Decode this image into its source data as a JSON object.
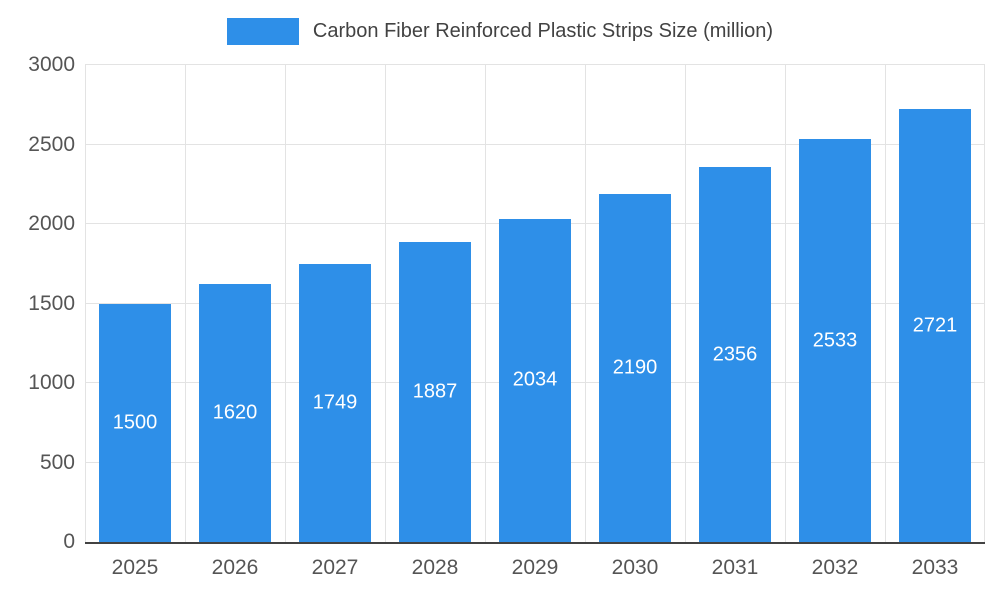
{
  "chart_data": {
    "type": "bar",
    "title": "Carbon Fiber Reinforced Plastic Strips Size (million)",
    "categories": [
      "2025",
      "2026",
      "2027",
      "2028",
      "2029",
      "2030",
      "2031",
      "2032",
      "2033"
    ],
    "values": [
      1500,
      1620,
      1749,
      1887,
      2034,
      2190,
      2356,
      2533,
      2721
    ],
    "ylim": [
      0,
      3000
    ],
    "yticks": [
      0,
      500,
      1000,
      1500,
      2000,
      2500,
      3000
    ],
    "legend_position": "top",
    "grid": true,
    "bar_color": "#2E8FE8",
    "value_label_color": "#ffffff",
    "gridline_color": "#e3e3e3",
    "axis_line_color": "#424242",
    "tick_label_color": "#555555",
    "title_color": "#424242"
  }
}
